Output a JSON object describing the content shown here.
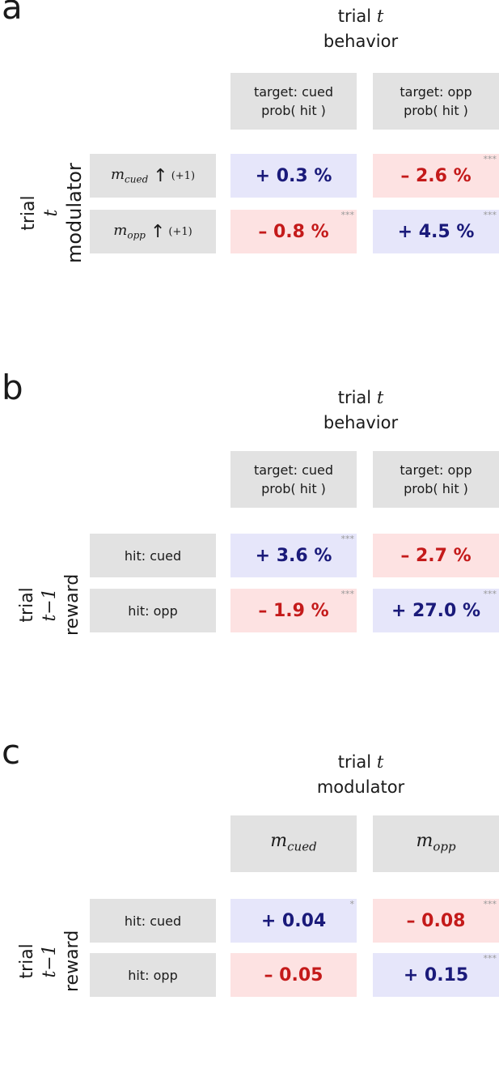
{
  "panels": {
    "a": {
      "letter": "a",
      "col_title": {
        "prefix": "trial ",
        "var": "t",
        "line2": "behavior"
      },
      "col_heads": [
        {
          "line1": "target: cued",
          "line2": "prob( hit )"
        },
        {
          "line1": "target: opp",
          "line2": "prob( hit )"
        }
      ],
      "row_label": {
        "prefix": "trial ",
        "var": "t",
        "line2": "modulator"
      },
      "row_heads": [
        {
          "m": "m",
          "sub": "cued",
          "arrow": "↑",
          "suffix": "(+1)"
        },
        {
          "m": "m",
          "sub": "opp",
          "arrow": "↑",
          "suffix": "(+1)"
        }
      ],
      "cells": [
        [
          {
            "value": "+ 0.3 %",
            "sig": "",
            "sign": "pos"
          },
          {
            "value": "– 2.6 %",
            "sig": "***",
            "sign": "neg"
          }
        ],
        [
          {
            "value": "– 0.8 %",
            "sig": "***",
            "sign": "neg"
          },
          {
            "value": "+ 4.5 %",
            "sig": "***",
            "sign": "pos"
          }
        ]
      ]
    },
    "b": {
      "letter": "b",
      "col_title": {
        "prefix": "trial ",
        "var": "t",
        "line2": "behavior"
      },
      "col_heads": [
        {
          "line1": "target: cued",
          "line2": "prob( hit )"
        },
        {
          "line1": "target: opp",
          "line2": "prob( hit )"
        }
      ],
      "row_label": {
        "prefix": "trial  ",
        "var": "t−1",
        "line2": "reward"
      },
      "row_heads": [
        {
          "label": "hit: cued"
        },
        {
          "label": "hit: opp"
        }
      ],
      "cells": [
        [
          {
            "value": "+ 3.6 %",
            "sig": "***",
            "sign": "pos"
          },
          {
            "value": "– 2.7 %",
            "sig": "",
            "sign": "neg"
          }
        ],
        [
          {
            "value": "– 1.9 %",
            "sig": "***",
            "sign": "neg"
          },
          {
            "value": "+ 27.0 %",
            "sig": "***",
            "sign": "pos"
          }
        ]
      ]
    },
    "c": {
      "letter": "c",
      "col_title": {
        "prefix": "trial ",
        "var": "t",
        "line2": "modulator"
      },
      "col_heads": [
        {
          "m": "m",
          "sub": "cued"
        },
        {
          "m": "m",
          "sub": "opp"
        }
      ],
      "row_label": {
        "prefix": "trial  ",
        "var": "t−1",
        "line2": "reward"
      },
      "row_heads": [
        {
          "label": "hit: cued"
        },
        {
          "label": "hit: opp"
        }
      ],
      "cells": [
        [
          {
            "value": "+ 0.04",
            "sig": "*",
            "sign": "pos"
          },
          {
            "value": "– 0.08",
            "sig": "***",
            "sign": "neg"
          }
        ],
        [
          {
            "value": "– 0.05",
            "sig": "",
            "sign": "neg"
          },
          {
            "value": "+ 0.15",
            "sig": "***",
            "sign": "pos"
          }
        ]
      ]
    }
  },
  "colors": {
    "positive_bg": "#e6e6fa",
    "positive_text": "#1a1a7a",
    "negative_bg": "#fde2e2",
    "negative_text": "#c41a1a",
    "header_bg": "#e2e2e2"
  }
}
